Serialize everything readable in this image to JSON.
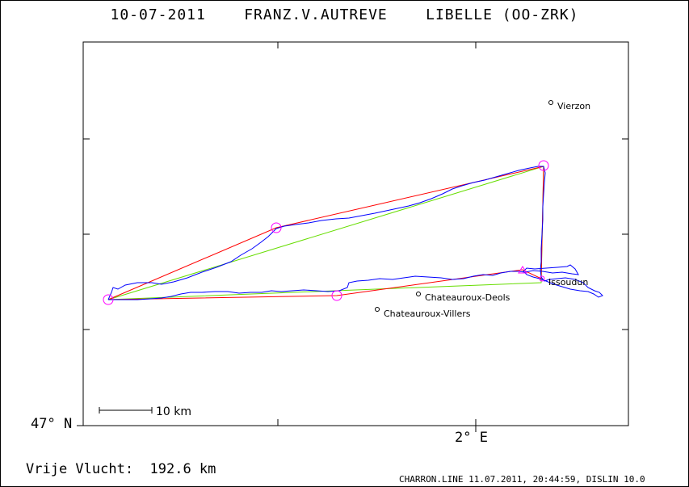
{
  "title": "10-07-2011    FRANZ.V.AUTREVE    LIBELLE (OO-ZRK)",
  "axes": {
    "lat_label": "47° N",
    "lon_label": "2° E"
  },
  "scale_bar": {
    "label": "10 km"
  },
  "places": [
    {
      "name": "Vierzon"
    },
    {
      "name": "Issoudun"
    },
    {
      "name": "Chateauroux-Deols"
    },
    {
      "name": "Chateauroux-Villers"
    }
  ],
  "footer": {
    "distance_label": "Vrije Vlucht:  192.6 km",
    "info": "CHARRON.LINE 11.07.2011, 20:44:59, DISLIN 10.0"
  },
  "colors": {
    "track": "#0000ff",
    "task_legs": "#ff0000",
    "optimized_legs": "#66dd00",
    "turnpoints": "#ff00ff",
    "frame": "#000000"
  }
}
